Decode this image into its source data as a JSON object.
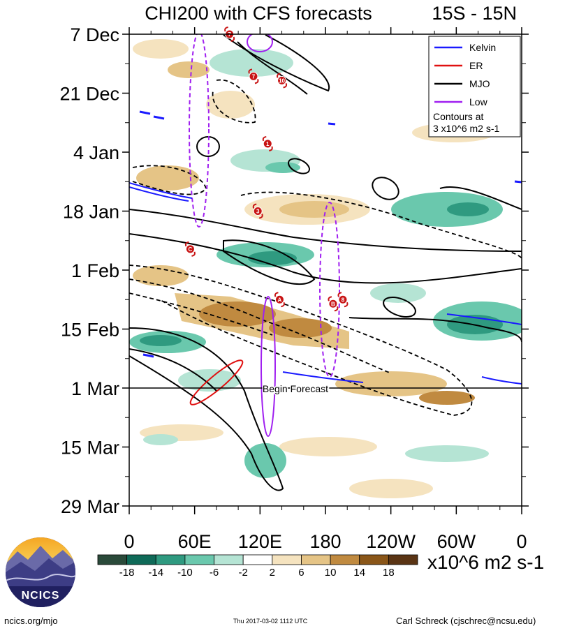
{
  "chart_data": {
    "type": "hovmoller",
    "title": "CHI200 with CFS forecasts",
    "region": "15S - 15N",
    "x_axis": {
      "ticks": [
        "0",
        "60E",
        "120E",
        "180",
        "120W",
        "60W",
        "0"
      ],
      "range_deg": [
        0,
        360
      ]
    },
    "y_axis": {
      "ticks": [
        "7 Dec",
        "21 Dec",
        "4 Jan",
        "18 Jan",
        "1 Feb",
        "15 Feb",
        "1 Mar",
        "15 Mar",
        "29 Mar"
      ],
      "range_days": [
        0,
        112
      ]
    },
    "forecast_line": {
      "label": "Begin Forecast",
      "day": 84
    },
    "legend": [
      {
        "name": "Kelvin",
        "color": "#1a1aff"
      },
      {
        "name": "ER",
        "color": "#e01010"
      },
      {
        "name": "MJO",
        "color": "#000000"
      },
      {
        "name": "Low",
        "color": "#a020f0"
      }
    ],
    "contour_note": [
      "Contours at",
      "3 x10^6 m2 s-1"
    ],
    "colorbar": {
      "labels": [
        "-18",
        "-14",
        "-10",
        "-6",
        "-2",
        "2",
        "6",
        "10",
        "14",
        "18"
      ],
      "colors": [
        "#2a4a3a",
        "#0f6a58",
        "#2f9a80",
        "#6ac8ad",
        "#b5e4d4",
        "#ffffff",
        "#f5e3bf",
        "#e5c486",
        "#c08a40",
        "#8a5618",
        "#5a3414"
      ],
      "units": "x10^6 m2 s-1"
    },
    "storms": [
      {
        "label": "7",
        "lon": 92,
        "day": 0
      },
      {
        "label": "7",
        "lon": 114,
        "day": 10
      },
      {
        "label": "10",
        "lon": 140,
        "day": 11
      },
      {
        "label": "1",
        "lon": 127,
        "day": 26
      },
      {
        "label": "3",
        "lon": 118,
        "day": 42
      },
      {
        "label": "C",
        "lon": 56,
        "day": 51
      },
      {
        "label": "A",
        "lon": 138,
        "day": 63
      },
      {
        "label": "B",
        "lon": 187,
        "day": 64
      },
      {
        "label": "8",
        "lon": 196,
        "day": 63
      }
    ]
  },
  "logo": {
    "text": "NCICS"
  },
  "footer": {
    "left": "ncics.org/mjo",
    "center": "Thu 2017-03-02 1112 UTC",
    "right": "Carl Schreck (cjschrec@ncsu.edu)"
  }
}
